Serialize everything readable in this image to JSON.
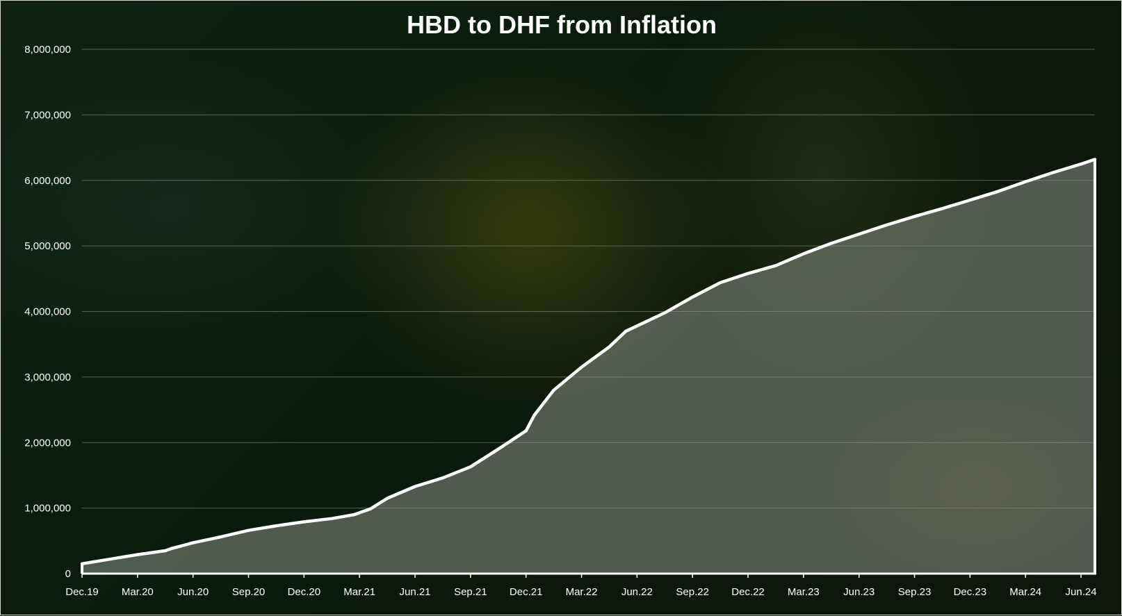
{
  "chart_data": {
    "type": "area",
    "title": "HBD to DHF from Inflation",
    "xlabel": "",
    "ylabel": "",
    "x_tick_labels": [
      "Dec.19",
      "Mar.20",
      "Jun.20",
      "Sep.20",
      "Dec.20",
      "Mar.21",
      "Jun.21",
      "Sep.21",
      "Dec.21",
      "Mar.22",
      "Jun.22",
      "Sep.22",
      "Dec.22",
      "Mar.23",
      "Jun.23",
      "Sep.23",
      "Dec.23",
      "Mar.24",
      "Jun.24"
    ],
    "y_tick_labels": [
      "0",
      "1,000,000",
      "2,000,000",
      "3,000,000",
      "4,000,000",
      "5,000,000",
      "6,000,000",
      "7,000,000",
      "8,000,000"
    ],
    "ylim": [
      0,
      8000000
    ],
    "xlim": [
      0,
      18.25
    ],
    "grid": "horizontal",
    "legend": "none",
    "x_unit_note": "x in quarters since Dec.19",
    "series": [
      {
        "points": [
          [
            0,
            150000
          ],
          [
            0.5,
            220000
          ],
          [
            1,
            290000
          ],
          [
            1.5,
            350000
          ],
          [
            1.6,
            380000
          ],
          [
            2,
            470000
          ],
          [
            2.5,
            560000
          ],
          [
            3,
            660000
          ],
          [
            3.5,
            730000
          ],
          [
            4,
            790000
          ],
          [
            4.5,
            840000
          ],
          [
            4.9,
            900000
          ],
          [
            5.2,
            990000
          ],
          [
            5.5,
            1150000
          ],
          [
            6,
            1330000
          ],
          [
            6.5,
            1460000
          ],
          [
            7,
            1630000
          ],
          [
            7.5,
            1900000
          ],
          [
            8,
            2180000
          ],
          [
            8.15,
            2420000
          ],
          [
            8.5,
            2800000
          ],
          [
            9,
            3150000
          ],
          [
            9.5,
            3460000
          ],
          [
            9.8,
            3700000
          ],
          [
            10,
            3780000
          ],
          [
            10.5,
            3980000
          ],
          [
            11,
            4220000
          ],
          [
            11.5,
            4440000
          ],
          [
            12,
            4580000
          ],
          [
            12.5,
            4700000
          ],
          [
            13,
            4880000
          ],
          [
            13.5,
            5040000
          ],
          [
            14,
            5180000
          ],
          [
            14.5,
            5320000
          ],
          [
            15,
            5450000
          ],
          [
            15.5,
            5570000
          ],
          [
            16,
            5700000
          ],
          [
            16.5,
            5830000
          ],
          [
            17,
            5980000
          ],
          [
            17.5,
            6120000
          ],
          [
            18,
            6250000
          ],
          [
            18.25,
            6320000
          ]
        ]
      }
    ],
    "colors": {
      "line": "#ffffff",
      "area_fill": "#8a9286",
      "gridline": "#6e7a6c",
      "text": "#ffffff",
      "background": "#0b1709"
    }
  }
}
